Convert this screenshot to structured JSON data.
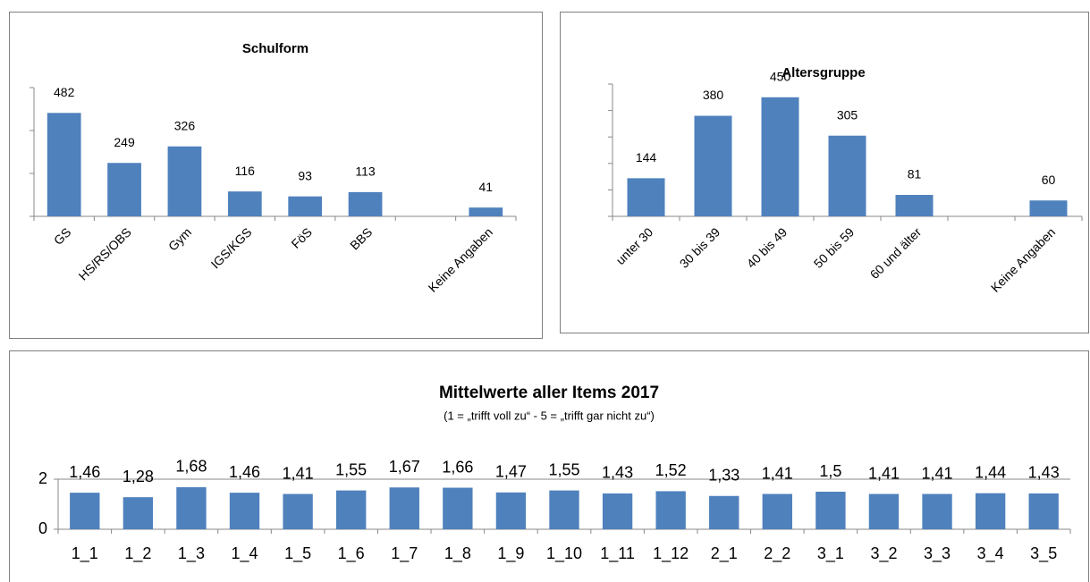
{
  "chart_data": [
    {
      "type": "bar",
      "title": "Schulform",
      "categories": [
        "GS",
        "HS/RS/OBS",
        "Gym",
        "IGS/KGS",
        "FöS",
        "BBS",
        null,
        "Keine Angaben"
      ],
      "values": [
        482,
        249,
        326,
        116,
        93,
        113,
        null,
        41
      ],
      "color": "#4f81bd",
      "ylim": [
        0,
        600
      ],
      "yticks": [
        0,
        200,
        400,
        600
      ],
      "ytick_labels": false,
      "rotate_labels": true
    },
    {
      "type": "bar",
      "title": "Altersgruppe",
      "categories": [
        "unter 30",
        "30 bis 39",
        "40 bis 49",
        "50 bis 59",
        "60 und älter",
        null,
        "Keine Angaben"
      ],
      "values": [
        144,
        380,
        450,
        305,
        81,
        null,
        60
      ],
      "color": "#4f81bd",
      "ylim": [
        0,
        500
      ],
      "yticks": [
        0,
        100,
        200,
        300,
        400,
        500
      ],
      "ytick_labels": false,
      "rotate_labels": true
    },
    {
      "type": "bar",
      "title": "Mittelwerte aller Items 2017",
      "subtitle": "(1 = „trifft voll zu“ - 5 = „trifft gar nicht zu“)",
      "categories": [
        "1_1",
        "1_2",
        "1_3",
        "1_4",
        "1_5",
        "1_6",
        "1_7",
        "1_8",
        "1_9",
        "1_10",
        "1_11",
        "1_12",
        "2_1",
        "2_2",
        "3_1",
        "3_2",
        "3_3",
        "3_4",
        "3_5"
      ],
      "values": [
        1.46,
        1.28,
        1.68,
        1.46,
        1.41,
        1.55,
        1.67,
        1.66,
        1.47,
        1.55,
        1.43,
        1.52,
        1.33,
        1.41,
        1.5,
        1.41,
        1.41,
        1.44,
        1.43
      ],
      "value_labels": [
        "1,46",
        "1,28",
        "1,68",
        "1,46",
        "1,41",
        "1,55",
        "1,67",
        "1,66",
        "1,47",
        "1,55",
        "1,43",
        "1,52",
        "1,33",
        "1,41",
        "1,5",
        "1,41",
        "1,41",
        "1,44",
        "1,43"
      ],
      "color": "#4f81bd",
      "ylim": [
        0,
        2
      ],
      "yticks": [
        0,
        2
      ],
      "ytick_labels": true,
      "grid": true,
      "rotate_labels": false
    }
  ]
}
